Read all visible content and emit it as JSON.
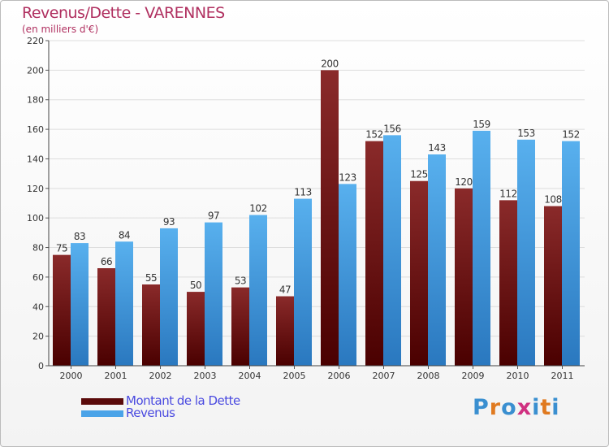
{
  "chart_data": {
    "type": "bar",
    "title": "Revenus/Dette - VARENNES",
    "subtitle": "(en milliers d'€)",
    "categories": [
      "2000",
      "2001",
      "2002",
      "2003",
      "2004",
      "2005",
      "2006",
      "2007",
      "2008",
      "2009",
      "2010",
      "2011"
    ],
    "series": [
      {
        "name": "Montant de la Dette",
        "color": "#7a1a1a",
        "values": [
          75,
          66,
          55,
          50,
          53,
          47,
          200,
          152,
          125,
          120,
          112,
          108
        ]
      },
      {
        "name": "Revenus",
        "color": "#4aa3e8",
        "values": [
          83,
          84,
          93,
          97,
          102,
          113,
          123,
          156,
          143,
          159,
          153,
          152
        ]
      }
    ],
    "ylim": [
      0,
      220
    ],
    "yticks": [
      0,
      20,
      40,
      60,
      80,
      100,
      120,
      140,
      160,
      180,
      200,
      220
    ],
    "grid": true,
    "legend": "bottom-left"
  },
  "logo": {
    "letters": [
      "P",
      "r",
      "o",
      "x",
      "i",
      "t",
      "i"
    ],
    "colors": [
      "#3a8fd0",
      "#e07a20",
      "#3a8fd0",
      "#d03080",
      "#3a8fd0",
      "#e07a20",
      "#3a8fd0"
    ]
  }
}
